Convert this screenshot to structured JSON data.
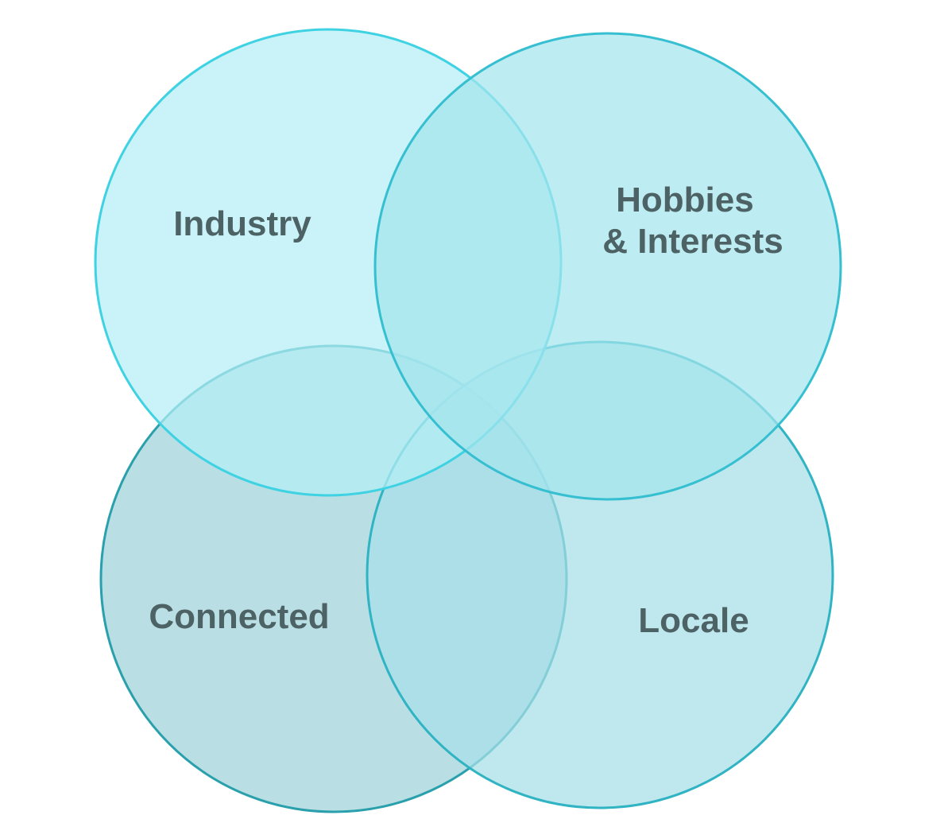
{
  "diagram": {
    "type": "venn",
    "sets": [
      {
        "id": "industry",
        "lines": [
          "Industry"
        ],
        "fill": "#b4eef5",
        "stroke": "#3fd2e2"
      },
      {
        "id": "hobbies",
        "lines": [
          "Hobbies",
          "& Interests"
        ],
        "fill": "#a4e4ed",
        "stroke": "#36bfd0"
      },
      {
        "id": "connected",
        "lines": [
          "Connected"
        ],
        "fill": "#9ed2d9",
        "stroke": "#2aa0ad"
      },
      {
        "id": "locale",
        "lines": [
          "Locale"
        ],
        "fill": "#a6dfe8",
        "stroke": "#30b3c3"
      }
    ]
  }
}
